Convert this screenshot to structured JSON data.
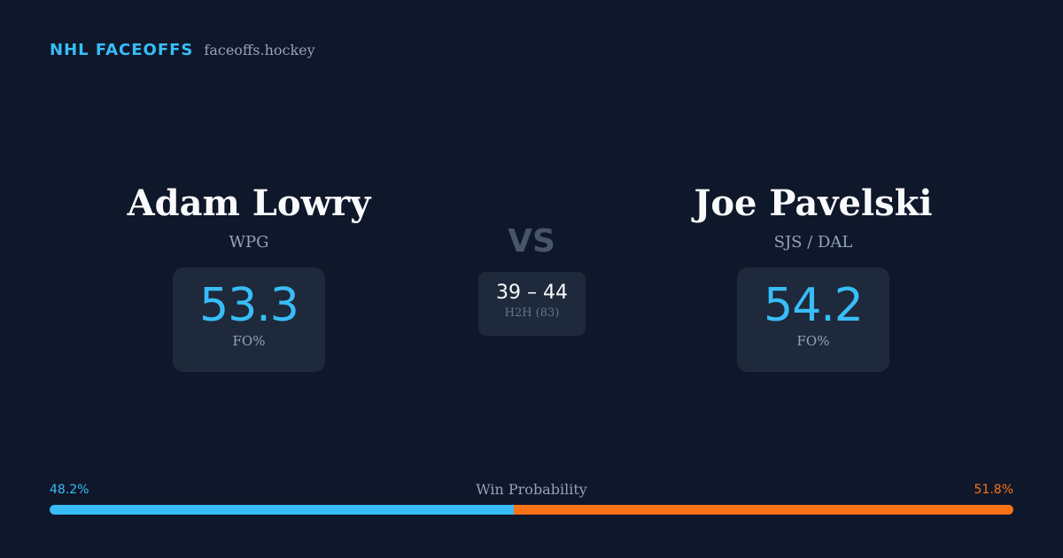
{
  "brand": {
    "name": "NHL FACEOFFS",
    "url": "faceoffs.hockey",
    "accent_color": "#38bdf8"
  },
  "players": {
    "left": {
      "name": "Adam Lowry",
      "team": "WPG",
      "fo_value": "53.3",
      "fo_label": "FO%"
    },
    "right": {
      "name": "Joe Pavelski",
      "team": "SJS / DAL",
      "fo_value": "54.2",
      "fo_label": "FO%"
    }
  },
  "vs_label": "VS",
  "head_to_head": {
    "score": "39 – 44",
    "label": "H2H (83)"
  },
  "win_probability": {
    "title": "Win Probability",
    "left_label": "48.2%",
    "right_label": "51.8%",
    "left_fraction": 0.482,
    "right_fraction": 0.518,
    "left_color": "#38bdf8",
    "right_color": "#f97316"
  }
}
